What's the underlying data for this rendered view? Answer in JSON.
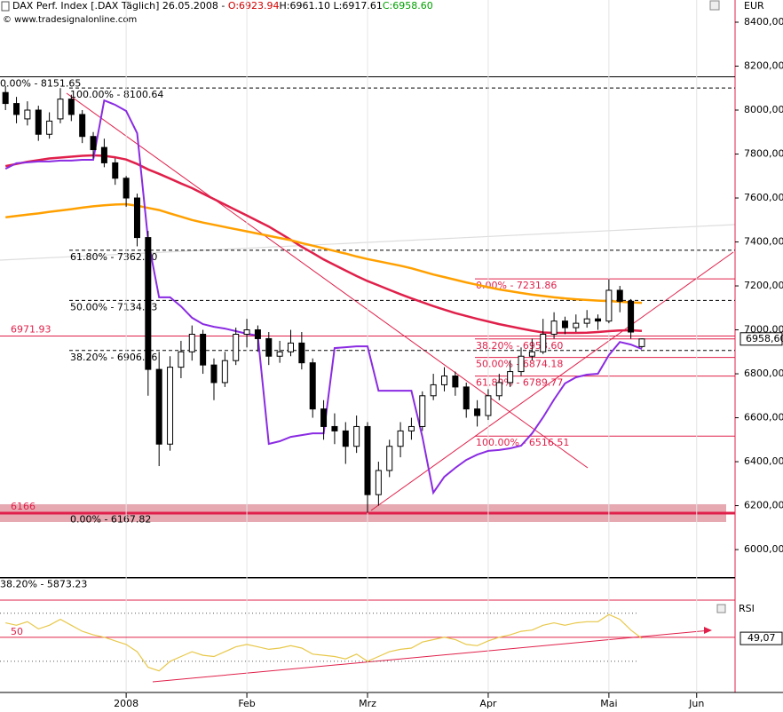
{
  "chart_data": {
    "type": "candlestick",
    "title_parts": [
      {
        "text": "DAX Perf. Index [.DAX  Täglich] 26.05.2008 - ",
        "color": "#000000"
      },
      {
        "text": "O:6923.94",
        "color": "#d00000"
      },
      {
        "text": "H:6961.10 L:6917.61",
        "color": "#000000"
      },
      {
        "text": "C:6958.60",
        "color": "#00a000"
      }
    ],
    "copyright": "© www.tradesignalonline.com",
    "currency": "EUR",
    "categories": [
      null,
      null,
      null,
      null,
      null,
      null,
      null,
      null,
      null,
      null,
      null,
      "2008",
      null,
      null,
      null,
      null,
      null,
      null,
      null,
      null,
      null,
      null,
      "Feb",
      null,
      null,
      null,
      null,
      null,
      null,
      null,
      null,
      null,
      null,
      "Mrz",
      null,
      null,
      null,
      null,
      null,
      null,
      null,
      null,
      null,
      null,
      "Apr",
      null,
      null,
      null,
      null,
      null,
      null,
      null,
      null,
      null,
      null,
      "Mai",
      null,
      null,
      null,
      null,
      null,
      null,
      null,
      "Jun",
      null,
      null,
      null
    ],
    "open": [
      8080,
      8030,
      7960,
      8000,
      7890,
      7960,
      8050,
      7980,
      7880,
      7830,
      7760,
      7690,
      7600,
      7420,
      6820,
      6480,
      6830,
      6900,
      6980,
      6840,
      6760,
      6860,
      6980,
      7000,
      6960,
      6880,
      6900,
      6940,
      6850,
      6640,
      6560,
      6540,
      6470,
      6560,
      6250,
      6360,
      6470,
      6540,
      6560,
      6700,
      6750,
      6790,
      6740,
      6640,
      6610,
      6700,
      6760,
      6810,
      6880,
      6900,
      6980,
      7040,
      7010,
      7030,
      7050,
      7040,
      7180,
      7130,
      6923.94,
      null,
      null,
      null,
      null,
      null,
      null,
      null,
      null
    ],
    "high": [
      8110,
      8060,
      8040,
      8020,
      7990,
      8100,
      8070,
      8000,
      7900,
      7870,
      7780,
      7700,
      7620,
      7450,
      6900,
      6880,
      6950,
      7020,
      7000,
      6870,
      6900,
      7010,
      7050,
      7020,
      6990,
      6950,
      7000,
      6990,
      6870,
      6680,
      6620,
      6580,
      6610,
      6580,
      6400,
      6500,
      6580,
      6600,
      6720,
      6800,
      6830,
      6810,
      6760,
      6680,
      6730,
      6800,
      6860,
      6920,
      6960,
      7050,
      7080,
      7060,
      7070,
      7090,
      7070,
      7230,
      7200,
      7140,
      6961.1,
      null,
      null,
      null,
      null,
      null,
      null,
      null,
      null
    ],
    "low": [
      8000,
      7940,
      7930,
      7860,
      7870,
      7940,
      7950,
      7850,
      7780,
      7740,
      7660,
      7560,
      7380,
      6700,
      6380,
      6450,
      6780,
      6860,
      6800,
      6680,
      6740,
      6840,
      6920,
      6900,
      6840,
      6850,
      6880,
      6820,
      6600,
      6500,
      6480,
      6390,
      6440,
      6168,
      6200,
      6330,
      6420,
      6500,
      6540,
      6680,
      6720,
      6700,
      6600,
      6560,
      6590,
      6680,
      6740,
      6790,
      6860,
      6890,
      6960,
      6980,
      6990,
      7010,
      7000,
      7030,
      7080,
      6960,
      6917.61,
      null,
      null,
      null,
      null,
      null,
      null,
      null,
      null
    ],
    "close": [
      8030,
      7980,
      8000,
      7890,
      7950,
      8050,
      7980,
      7880,
      7820,
      7760,
      7690,
      7600,
      7420,
      6820,
      6480,
      6830,
      6900,
      6980,
      6840,
      6760,
      6860,
      6980,
      7000,
      6960,
      6880,
      6900,
      6940,
      6850,
      6640,
      6560,
      6540,
      6470,
      6560,
      6250,
      6360,
      6470,
      6540,
      6560,
      6700,
      6750,
      6790,
      6740,
      6640,
      6610,
      6700,
      6760,
      6810,
      6880,
      6900,
      6980,
      7040,
      7010,
      7030,
      7050,
      7040,
      7180,
      7130,
      6990,
      6958.6,
      null,
      null,
      null,
      null,
      null,
      null,
      null,
      null
    ],
    "last_label": "6958,60",
    "ylim": [
      5871,
      8501
    ],
    "yticks": [
      {
        "value": 6000,
        "label": "6000,00"
      },
      {
        "value": 6200,
        "label": "6200,00"
      },
      {
        "value": 6400,
        "label": "6400,00"
      },
      {
        "value": 6600,
        "label": "6600,00"
      },
      {
        "value": 6800,
        "label": "6800,00"
      },
      {
        "value": 7000,
        "label": "7000,00"
      },
      {
        "value": 7200,
        "label": "7200,00"
      },
      {
        "value": 7400,
        "label": "7400,00"
      },
      {
        "value": 7600,
        "label": "7600,00"
      },
      {
        "value": 7800,
        "label": "7800,00"
      },
      {
        "value": 8000,
        "label": "8000,00"
      },
      {
        "value": 8200,
        "label": "8200,00"
      },
      {
        "value": 8400,
        "label": "8400,00"
      }
    ],
    "lines": [
      {
        "color": "#e0204a",
        "values": [
          7745,
          7755,
          7765,
          7772,
          7780,
          7784,
          7788,
          7792,
          7794,
          7792,
          7785,
          7775,
          7755,
          7730,
          7710,
          7688,
          7666,
          7645,
          7620,
          7595,
          7570,
          7545,
          7520,
          7495,
          7470,
          7440,
          7410,
          7378,
          7350,
          7320,
          7295,
          7270,
          7245,
          7222,
          7202,
          7182,
          7162,
          7143,
          7126,
          7108,
          7092,
          7076,
          7063,
          7050,
          7038,
          7026,
          7016,
          7006,
          6996,
          6988,
          6986,
          6986,
          6986,
          6987,
          6990,
          6994,
          6997,
          6998,
          6995,
          null,
          null,
          null,
          null,
          null,
          null,
          null,
          null
        ]
      },
      {
        "color": "#ffa000",
        "values": [
          7512,
          7518,
          7524,
          7530,
          7537,
          7543,
          7549,
          7556,
          7562,
          7567,
          7570,
          7572,
          7565,
          7555,
          7545,
          7530,
          7515,
          7500,
          7488,
          7478,
          7468,
          7458,
          7448,
          7438,
          7428,
          7418,
          7408,
          7395,
          7383,
          7371,
          7359,
          7347,
          7334,
          7322,
          7312,
          7302,
          7292,
          7280,
          7266,
          7252,
          7240,
          7228,
          7216,
          7205,
          7194,
          7184,
          7176,
          7168,
          7160,
          7154,
          7148,
          7143,
          7139,
          7136,
          7133,
          7131,
          7128,
          7125,
          7123,
          null,
          null,
          null,
          null,
          null,
          null,
          null,
          null
        ]
      },
      {
        "color": "#8a2be2",
        "values": [
          7733,
          7758,
          7762,
          7766,
          7766,
          7770,
          7770,
          7774,
          7774,
          8044,
          8024,
          7996,
          7895,
          7410,
          7148,
          7148,
          7107,
          7055,
          7026,
          7014,
          7006,
          6994,
          6982,
          6974,
          6481,
          6493,
          6513,
          6521,
          6529,
          6529,
          6917,
          6921,
          6925,
          6925,
          6723,
          6723,
          6723,
          6723,
          6513,
          6259,
          6331,
          6372,
          6408,
          6432,
          6449,
          6453,
          6461,
          6473,
          6529,
          6602,
          6683,
          6756,
          6784,
          6796,
          6800,
          6885,
          6945,
          6933,
          6913,
          null,
          null,
          null,
          null,
          null,
          null,
          null,
          null
        ]
      }
    ],
    "fib_levels": [
      {
        "value": 8151.65,
        "label": "0.00% - 8151.65"
      },
      {
        "value": 8100.64,
        "label": "100.00% - 8100.64"
      },
      {
        "value": 7362.3,
        "label": "61.80% - 7362.30"
      },
      {
        "value": 7134.23,
        "label": "50.00% - 7134.23"
      },
      {
        "value": 6906.16,
        "label": "38.20% - 6906.16"
      },
      {
        "value": 6167.82,
        "label": "0.00% - 6167.82"
      },
      {
        "value": 5873.23,
        "label": "38.20% - 5873.23"
      }
    ],
    "fib_red_levels": [
      {
        "value": 7231.86,
        "label": "0.00% - 7231.86"
      },
      {
        "value": 6958.6,
        "label": "38.20% - 6958.60"
      },
      {
        "value": 6874.18,
        "label": "50.00% - 6874.18"
      },
      {
        "value": 6789.77,
        "label": "61.80% - 6789.77"
      },
      {
        "value": 6516.51,
        "label": "100.00% - 6516.51"
      }
    ],
    "hlines": [
      {
        "value": 6971.93
      },
      {
        "value": 6166,
        "zone": true
      }
    ],
    "rsi": {
      "title": "RSI",
      "color": "#e8c84a",
      "ylim": [
        4,
        78
      ],
      "guides": [
        70,
        30
      ],
      "level": 50,
      "last_label": "49,07",
      "values": [
        62,
        60,
        63,
        57,
        60,
        65,
        60,
        55,
        52,
        50,
        47,
        44,
        38,
        25,
        22,
        30,
        34,
        38,
        35,
        34,
        38,
        42,
        44,
        42,
        40,
        41,
        43,
        41,
        36,
        35,
        34,
        32,
        36,
        30,
        34,
        38,
        40,
        41,
        46,
        48,
        50,
        48,
        44,
        43,
        47,
        50,
        52,
        55,
        56,
        60,
        62,
        60,
        62,
        63,
        63,
        69,
        65,
        56,
        49.07,
        null,
        null,
        null,
        null,
        null,
        null,
        null,
        null
      ]
    }
  }
}
